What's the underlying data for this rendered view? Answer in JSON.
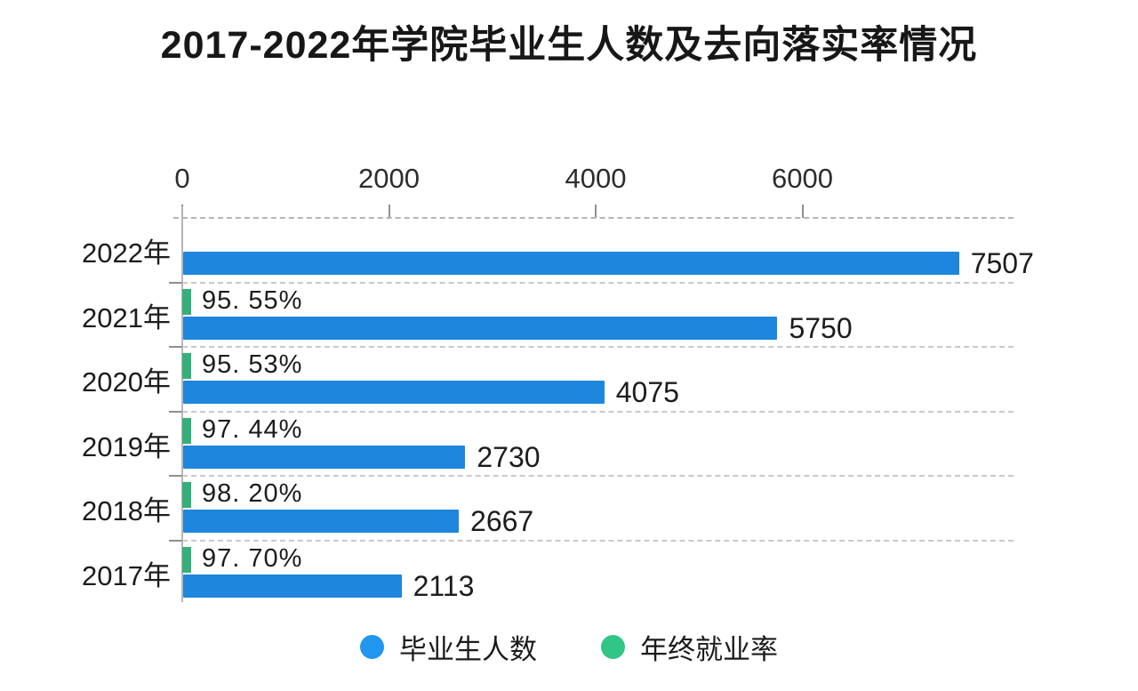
{
  "title": "2017-2022年学院毕业生人数及去向落实率情况",
  "chart_data": {
    "type": "bar",
    "orientation": "horizontal",
    "title": "2017-2022年学院毕业生人数及去向落实率情况",
    "categories": [
      "2022年",
      "2021年",
      "2020年",
      "2019年",
      "2018年",
      "2017年"
    ],
    "series": [
      {
        "name": "毕业生人数",
        "type": "bar",
        "color": "#1e86dc",
        "values": [
          7507,
          5750,
          4075,
          2730,
          2667,
          2113
        ]
      },
      {
        "name": "年终就业率",
        "type": "marker",
        "color": "#35b07a",
        "values": [
          null,
          95.55,
          95.53,
          97.44,
          98.2,
          97.7
        ],
        "labels": [
          null,
          "95. 55%",
          "95. 53%",
          "97. 44%",
          "98. 20%",
          "97. 70%"
        ]
      }
    ],
    "xlim": [
      0,
      8000
    ],
    "x_ticks": [
      0,
      2000,
      4000,
      6000
    ],
    "x_tick_labels": [
      "0",
      "2000",
      "4000",
      "6000"
    ],
    "x_axis_position": "top",
    "grid": "dashed horizontal separators between category rows",
    "legend_position": "bottom-center",
    "legend": [
      {
        "label": "毕业生人数",
        "color": "#2196ef"
      },
      {
        "label": "年终就业率",
        "color": "#30c587"
      }
    ]
  },
  "colors": {
    "bar_blue": "#1e86dc",
    "marker_green": "#35b07a",
    "axis_gray": "#b5b5b5",
    "text_dark": "#1c1c1c",
    "background": "#ffffff"
  }
}
